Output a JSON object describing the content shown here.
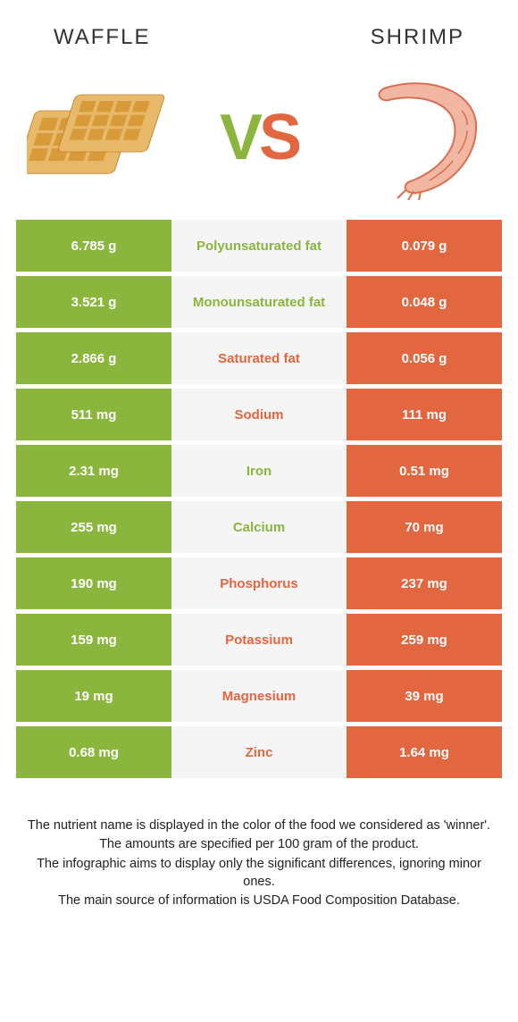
{
  "colors": {
    "waffle": "#8bb63e",
    "shrimp": "#e2663f",
    "mid_bg": "#f5f5f5",
    "text_dark": "#333333"
  },
  "header": {
    "left": "Waffle",
    "right": "Shrimp"
  },
  "vs": {
    "v": "V",
    "s": "S"
  },
  "rows": [
    {
      "nutrient": "Polyunsaturated fat",
      "left": "6.785 g",
      "right": "0.079 g",
      "winner": "waffle"
    },
    {
      "nutrient": "Monounsaturated fat",
      "left": "3.521 g",
      "right": "0.048 g",
      "winner": "waffle"
    },
    {
      "nutrient": "Saturated fat",
      "left": "2.866 g",
      "right": "0.056 g",
      "winner": "shrimp"
    },
    {
      "nutrient": "Sodium",
      "left": "511 mg",
      "right": "111 mg",
      "winner": "shrimp"
    },
    {
      "nutrient": "Iron",
      "left": "2.31 mg",
      "right": "0.51 mg",
      "winner": "waffle"
    },
    {
      "nutrient": "Calcium",
      "left": "255 mg",
      "right": "70 mg",
      "winner": "waffle"
    },
    {
      "nutrient": "Phosphorus",
      "left": "190 mg",
      "right": "237 mg",
      "winner": "shrimp"
    },
    {
      "nutrient": "Potassium",
      "left": "159 mg",
      "right": "259 mg",
      "winner": "shrimp"
    },
    {
      "nutrient": "Magnesium",
      "left": "19 mg",
      "right": "39 mg",
      "winner": "shrimp"
    },
    {
      "nutrient": "Zinc",
      "left": "0.68 mg",
      "right": "1.64 mg",
      "winner": "shrimp"
    }
  ],
  "footnotes": [
    "The nutrient name is displayed in the color of the food we considered as 'winner'.",
    "The amounts are specified per 100 gram of the product.",
    "The infographic aims to display only the significant differences, ignoring minor ones.",
    "The main source of information is USDA Food Composition Database."
  ]
}
